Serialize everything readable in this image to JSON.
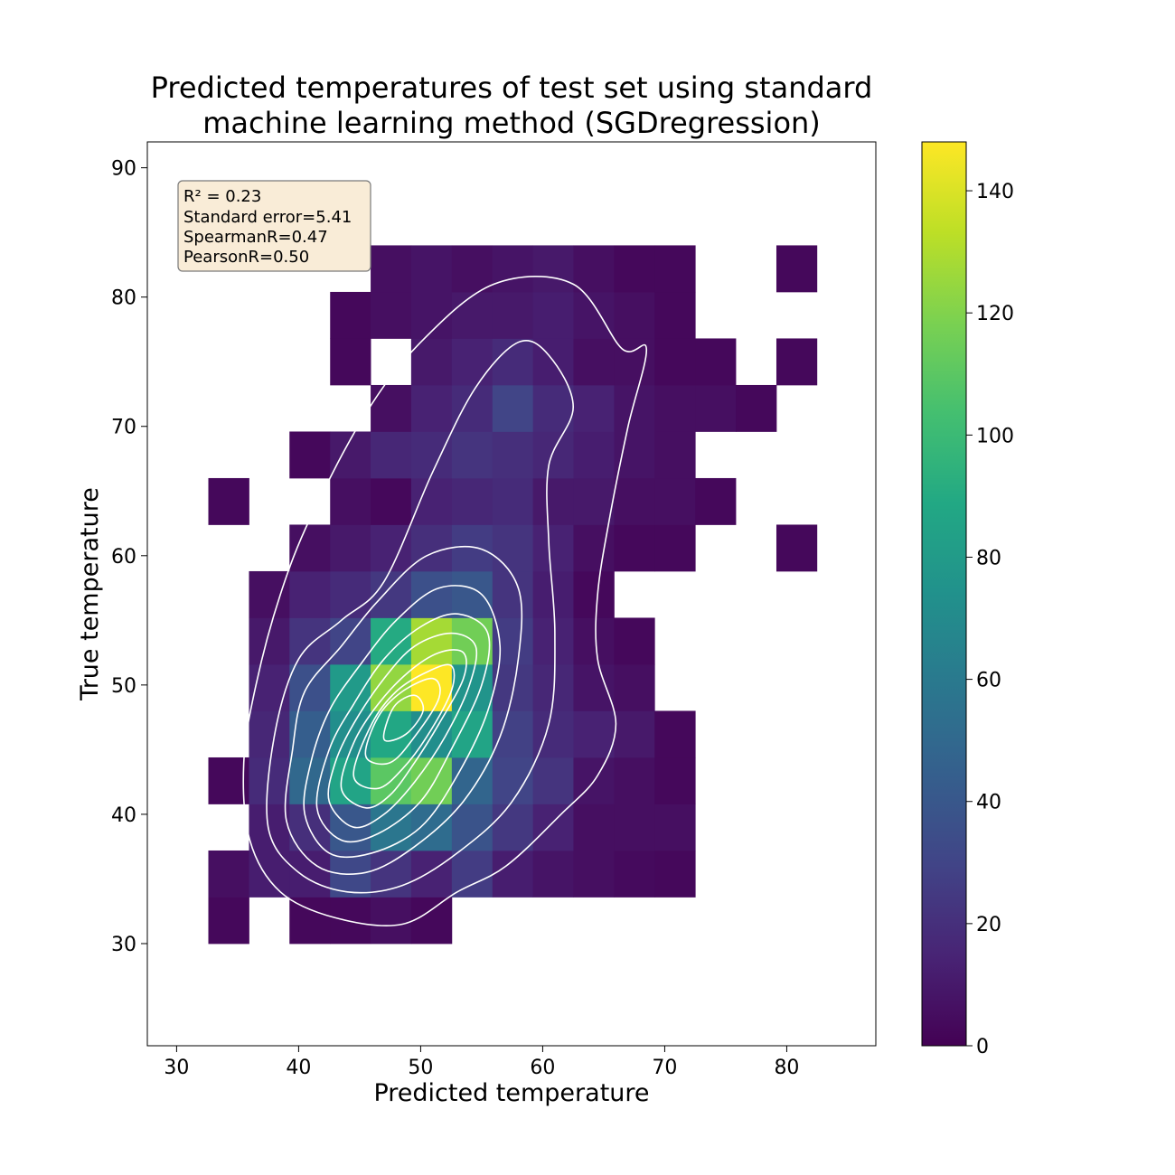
{
  "chart_data": {
    "type": "heatmap",
    "title_lines": [
      "Predicted temperatures of test set using standard",
      "machine learning method (SGDregression)"
    ],
    "xlabel": "Predicted temperature",
    "ylabel": "True temperature",
    "xlim": [
      27.6,
      87.3
    ],
    "ylim": [
      22.1,
      92.0
    ],
    "x_ticks": [
      30,
      40,
      50,
      60,
      70,
      80
    ],
    "y_ticks": [
      30,
      40,
      50,
      60,
      70,
      80,
      90
    ],
    "x_edges": [
      32.6,
      35.93,
      39.25,
      42.58,
      45.9,
      49.22,
      52.55,
      55.88,
      59.2,
      62.52,
      65.85,
      69.17,
      72.5,
      75.82,
      79.15,
      82.47
    ],
    "y_edges": [
      30.0,
      33.6,
      37.2,
      40.8,
      44.4,
      48.0,
      51.6,
      55.2,
      58.8,
      62.4,
      66.0,
      69.6,
      73.2,
      76.8,
      80.4,
      84.0
    ],
    "bins": [
      [
        3,
        0,
        3,
        3,
        6,
        3,
        0,
        0,
        0,
        0,
        0,
        0,
        0,
        0,
        0
      ],
      [
        6,
        12,
        12,
        32,
        22,
        14,
        26,
        12,
        8,
        6,
        4,
        3,
        0,
        0,
        0
      ],
      [
        0,
        12,
        20,
        40,
        58,
        52,
        38,
        24,
        14,
        6,
        6,
        6,
        0,
        0,
        0
      ],
      [
        3,
        18,
        50,
        86,
        110,
        116,
        48,
        30,
        22,
        8,
        6,
        3,
        0,
        0,
        0
      ],
      [
        0,
        16,
        44,
        72,
        88,
        72,
        86,
        28,
        18,
        14,
        10,
        3,
        0,
        0,
        0
      ],
      [
        0,
        14,
        36,
        80,
        124,
        148,
        76,
        24,
        16,
        8,
        6,
        0,
        0,
        0,
        0
      ],
      [
        0,
        10,
        22,
        30,
        90,
        128,
        116,
        26,
        14,
        6,
        3,
        0,
        0,
        0,
        0
      ],
      [
        0,
        6,
        14,
        18,
        24,
        36,
        40,
        22,
        12,
        3,
        0,
        0,
        0,
        0,
        0
      ],
      [
        0,
        0,
        6,
        10,
        14,
        20,
        26,
        22,
        14,
        6,
        3,
        3,
        0,
        0,
        3
      ],
      [
        3,
        0,
        0,
        6,
        3,
        14,
        16,
        18,
        10,
        10,
        6,
        6,
        3,
        0,
        0
      ],
      [
        0,
        0,
        3,
        10,
        16,
        18,
        22,
        20,
        16,
        12,
        8,
        6,
        0,
        0,
        0
      ],
      [
        0,
        0,
        0,
        0,
        6,
        14,
        18,
        30,
        18,
        14,
        8,
        6,
        6,
        3,
        0
      ],
      [
        0,
        0,
        0,
        3,
        0,
        10,
        14,
        18,
        12,
        6,
        6,
        3,
        3,
        0,
        3
      ],
      [
        0,
        0,
        0,
        3,
        6,
        8,
        10,
        10,
        12,
        8,
        6,
        3,
        0,
        0,
        0
      ],
      [
        0,
        0,
        0,
        0,
        6,
        8,
        6,
        8,
        10,
        6,
        3,
        3,
        0,
        0,
        3
      ]
    ],
    "colorbar": {
      "min": 0,
      "max": 148,
      "ticks": [
        0,
        20,
        40,
        60,
        80,
        100,
        120,
        140
      ],
      "colormap": "viridis"
    },
    "kde_contours": [
      [
        [
          36.0,
          38.0
        ],
        [
          38.5,
          34.0
        ],
        [
          43.0,
          32.0
        ],
        [
          48.5,
          31.5
        ],
        [
          53.0,
          34.0
        ],
        [
          57.0,
          36.0
        ],
        [
          61.5,
          40.0
        ],
        [
          64.5,
          43.0
        ],
        [
          66.0,
          47.0
        ],
        [
          64.5,
          52.0
        ],
        [
          64.5,
          57.0
        ],
        [
          65.5,
          63.0
        ],
        [
          67.0,
          70.0
        ],
        [
          68.5,
          76.0
        ],
        [
          66.5,
          76.0
        ],
        [
          62.5,
          81.0
        ],
        [
          56.0,
          81.0
        ],
        [
          50.0,
          76.5
        ],
        [
          45.5,
          71.0
        ],
        [
          41.0,
          63.0
        ],
        [
          38.5,
          57.0
        ],
        [
          36.5,
          50.0
        ],
        [
          35.5,
          44.0
        ]
      ],
      [
        [
          37.5,
          39.0
        ],
        [
          40.0,
          35.5
        ],
        [
          44.0,
          34.0
        ],
        [
          48.5,
          34.5
        ],
        [
          53.0,
          37.0
        ],
        [
          57.5,
          41.0
        ],
        [
          60.5,
          47.0
        ],
        [
          61.0,
          54.0
        ],
        [
          60.5,
          61.0
        ],
        [
          60.5,
          67.0
        ],
        [
          62.5,
          71.5
        ],
        [
          60.5,
          75.5
        ],
        [
          58.0,
          76.5
        ],
        [
          54.5,
          73.0
        ],
        [
          51.0,
          66.5
        ],
        [
          47.0,
          58.0
        ],
        [
          43.5,
          55.0
        ],
        [
          40.0,
          52.0
        ],
        [
          38.0,
          46.0
        ]
      ],
      [
        [
          39.0,
          39.5
        ],
        [
          41.5,
          36.0
        ],
        [
          45.5,
          35.5
        ],
        [
          49.5,
          37.5
        ],
        [
          53.5,
          41.0
        ],
        [
          56.5,
          46.0
        ],
        [
          58.0,
          52.0
        ],
        [
          58.0,
          57.5
        ],
        [
          55.0,
          60.5
        ],
        [
          50.5,
          60.0
        ],
        [
          46.5,
          56.5
        ],
        [
          43.5,
          53.0
        ],
        [
          40.5,
          49.5
        ],
        [
          39.5,
          45.0
        ]
      ],
      [
        [
          40.5,
          40.0
        ],
        [
          42.5,
          37.0
        ],
        [
          46.0,
          37.0
        ],
        [
          50.0,
          39.0
        ],
        [
          53.0,
          43.0
        ],
        [
          55.5,
          48.0
        ],
        [
          56.5,
          53.0
        ],
        [
          55.0,
          57.0
        ],
        [
          51.5,
          57.5
        ],
        [
          48.0,
          55.0
        ],
        [
          45.0,
          51.5
        ],
        [
          42.5,
          48.0
        ],
        [
          41.0,
          44.0
        ]
      ],
      [
        [
          41.5,
          40.5
        ],
        [
          43.5,
          38.0
        ],
        [
          46.5,
          38.5
        ],
        [
          50.0,
          41.0
        ],
        [
          52.5,
          45.0
        ],
        [
          55.0,
          50.0
        ],
        [
          55.5,
          54.0
        ],
        [
          53.0,
          55.5
        ],
        [
          50.0,
          54.5
        ],
        [
          47.0,
          52.0
        ],
        [
          44.5,
          48.5
        ],
        [
          42.5,
          45.0
        ]
      ],
      [
        [
          42.5,
          41.0
        ],
        [
          44.5,
          39.0
        ],
        [
          47.0,
          40.0
        ],
        [
          49.5,
          42.5
        ],
        [
          52.0,
          46.0
        ],
        [
          54.0,
          50.0
        ],
        [
          54.5,
          53.0
        ],
        [
          52.5,
          54.0
        ],
        [
          49.5,
          53.0
        ],
        [
          47.0,
          50.5
        ],
        [
          44.5,
          47.0
        ],
        [
          43.0,
          44.0
        ]
      ],
      [
        [
          43.5,
          42.0
        ],
        [
          45.5,
          40.5
        ],
        [
          47.5,
          41.5
        ],
        [
          49.5,
          44.0
        ],
        [
          51.5,
          47.0
        ],
        [
          53.5,
          50.5
        ],
        [
          53.5,
          52.5
        ],
        [
          51.5,
          52.5
        ],
        [
          49.0,
          51.0
        ],
        [
          46.5,
          48.5
        ],
        [
          44.5,
          45.5
        ]
      ],
      [
        [
          44.5,
          43.0
        ],
        [
          46.5,
          42.0
        ],
        [
          48.5,
          43.5
        ],
        [
          50.5,
          46.0
        ],
        [
          52.5,
          49.5
        ],
        [
          52.5,
          51.5
        ],
        [
          50.5,
          51.0
        ],
        [
          48.0,
          49.5
        ],
        [
          46.0,
          47.0
        ]
      ],
      [
        [
          45.5,
          44.5
        ],
        [
          47.5,
          44.0
        ],
        [
          49.5,
          46.0
        ],
        [
          51.5,
          49.0
        ],
        [
          51.0,
          50.5
        ],
        [
          48.5,
          49.5
        ],
        [
          46.5,
          47.5
        ]
      ],
      [
        [
          47.0,
          45.8
        ],
        [
          48.8,
          46.2
        ],
        [
          50.2,
          48.0
        ],
        [
          49.5,
          49.2
        ],
        [
          47.8,
          48.3
        ]
      ]
    ],
    "stats_box": {
      "lines": [
        "R² = 0.23",
        "Standard error=5.41",
        "SpearmanR=0.47",
        "PearsonR=0.50"
      ],
      "placement": "top-left"
    }
  }
}
